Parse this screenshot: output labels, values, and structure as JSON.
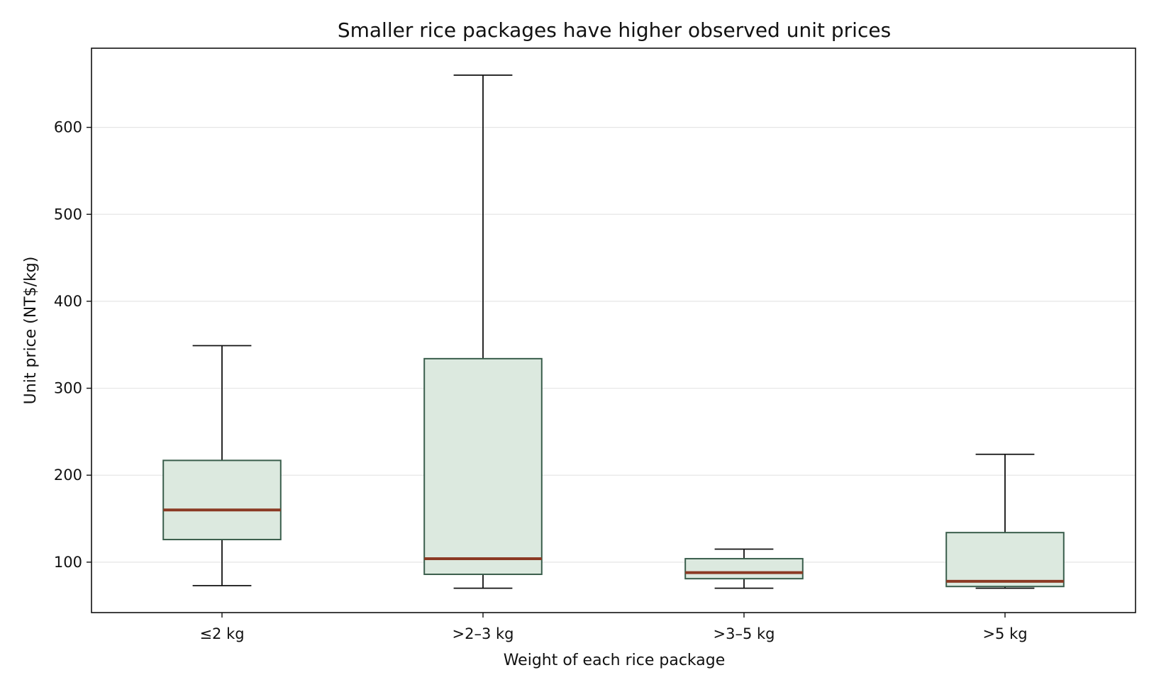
{
  "chart_data": {
    "type": "box",
    "title": "Smaller rice packages have higher observed unit prices",
    "xlabel": "Weight of each rice package",
    "ylabel": "Unit price (NT$/kg)",
    "ylim": [
      42,
      691
    ],
    "yticks": [
      100,
      200,
      300,
      400,
      500,
      600
    ],
    "grid": "horizontal",
    "categories": [
      "≤2 kg",
      ">2–3 kg",
      ">3–5 kg",
      ">5 kg"
    ],
    "boxes": [
      {
        "category": "≤2 kg",
        "whisker_low": 73,
        "q1": 126,
        "median": 160,
        "q3": 217,
        "whisker_high": 349
      },
      {
        "category": ">2–3 kg",
        "whisker_low": 70,
        "q1": 86,
        "median": 104,
        "q3": 334,
        "whisker_high": 660
      },
      {
        "category": ">3–5 kg",
        "whisker_low": 70,
        "q1": 81,
        "median": 88,
        "q3": 104,
        "whisker_high": 115
      },
      {
        "category": ">5 kg",
        "whisker_low": 70,
        "q1": 72,
        "median": 78,
        "q3": 134,
        "whisker_high": 224
      }
    ],
    "colors": {
      "box_fill": "#dce9df",
      "box_edge": "#3a5e4c",
      "median": "#8b3a24",
      "whisker": "#111111",
      "grid": "#e6e6e6",
      "axes": "#111111"
    }
  }
}
